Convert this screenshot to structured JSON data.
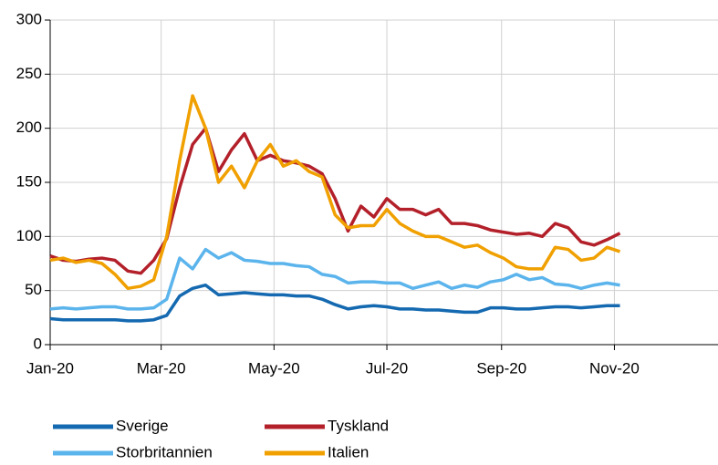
{
  "chart_data": {
    "type": "line",
    "x": [
      0,
      7,
      14,
      21,
      28,
      35,
      42,
      49,
      56,
      63,
      70,
      77,
      84,
      91,
      98,
      105,
      112,
      119,
      126,
      133,
      140,
      147,
      154,
      161,
      168,
      175,
      182,
      189,
      196,
      203,
      210,
      217,
      224,
      231,
      238,
      245,
      252,
      259,
      266,
      273,
      280,
      287,
      294,
      301,
      308
    ],
    "series": [
      {
        "name": "Sverige",
        "color": "#1469b0",
        "values": [
          24,
          23,
          23,
          23,
          23,
          23,
          22,
          22,
          23,
          27,
          45,
          52,
          55,
          46,
          47,
          48,
          47,
          46,
          46,
          45,
          45,
          42,
          37,
          33,
          35,
          36,
          35,
          33,
          33,
          32,
          32,
          31,
          30,
          30,
          34,
          34,
          33,
          33,
          34,
          35,
          35,
          34,
          35,
          36,
          36
        ]
      },
      {
        "name": "Tyskland",
        "color": "#b3202a",
        "values": [
          82,
          78,
          77,
          79,
          80,
          78,
          68,
          66,
          78,
          98,
          145,
          185,
          200,
          160,
          180,
          195,
          170,
          175,
          170,
          168,
          165,
          158,
          135,
          105,
          128,
          118,
          135,
          125,
          125,
          120,
          125,
          112,
          112,
          110,
          106,
          104,
          102,
          103,
          100,
          112,
          108,
          95,
          92,
          97,
          103
        ]
      },
      {
        "name": "Storbritannien",
        "color": "#5bb4ec",
        "values": [
          33,
          34,
          33,
          34,
          35,
          35,
          33,
          33,
          34,
          42,
          80,
          70,
          88,
          80,
          85,
          78,
          77,
          75,
          75,
          73,
          72,
          65,
          63,
          57,
          58,
          58,
          57,
          57,
          52,
          55,
          58,
          52,
          55,
          53,
          58,
          60,
          65,
          60,
          62,
          56,
          55,
          52,
          55,
          57,
          55
        ]
      },
      {
        "name": "Italien",
        "color": "#f0a000",
        "values": [
          78,
          80,
          76,
          78,
          75,
          65,
          52,
          54,
          60,
          100,
          170,
          230,
          200,
          150,
          165,
          145,
          170,
          185,
          165,
          170,
          160,
          155,
          120,
          108,
          110,
          110,
          125,
          112,
          105,
          100,
          100,
          95,
          90,
          92,
          85,
          80,
          72,
          70,
          70,
          90,
          88,
          78,
          80,
          90,
          86
        ]
      }
    ],
    "xlim": [
      0,
      361
    ],
    "xticks": [
      {
        "value": 0,
        "label": "Jan-20"
      },
      {
        "value": 60,
        "label": "Mar-20"
      },
      {
        "value": 121,
        "label": "May-20"
      },
      {
        "value": 182,
        "label": "Jul-20"
      },
      {
        "value": 244,
        "label": "Sep-20"
      },
      {
        "value": 305,
        "label": "Nov-20"
      }
    ],
    "ylim": [
      0,
      300
    ],
    "yticks": [
      0,
      50,
      100,
      150,
      200,
      250,
      300
    ],
    "grid": true
  }
}
